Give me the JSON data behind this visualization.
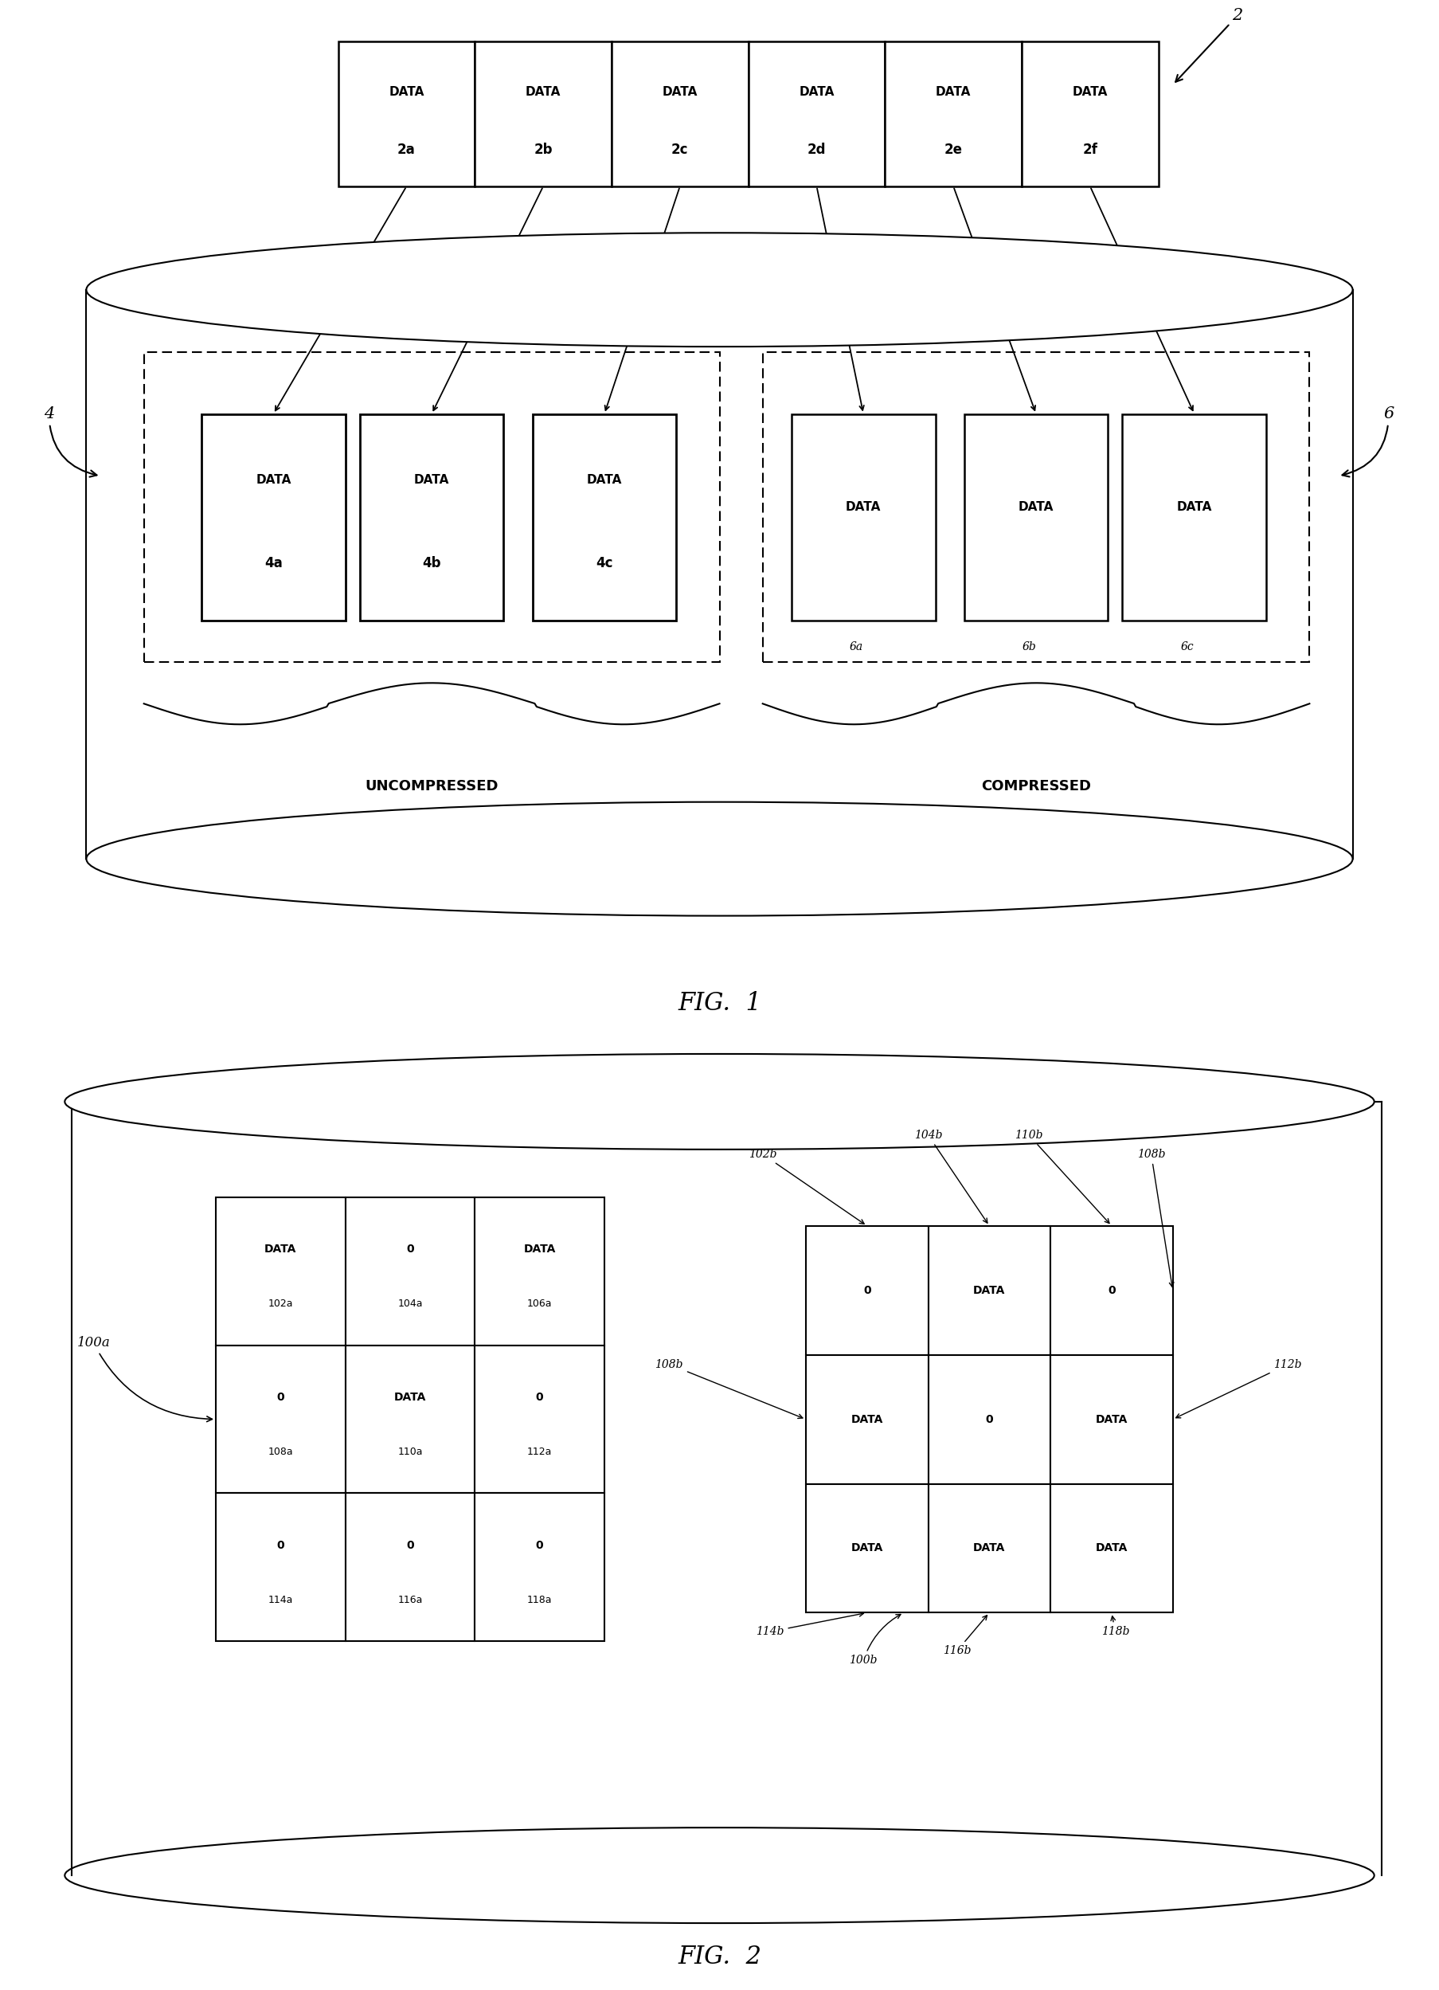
{
  "bg_color": "#ffffff",
  "fig1_title": "FIG.  1",
  "fig2_title": "FIG.  2",
  "top_box_labels": [
    "DATA\n2a",
    "DATA\n2b",
    "DATA\n2c",
    "DATA\n2d",
    "DATA\n2e",
    "DATA\n2f"
  ],
  "uncomp_labels": [
    "DATA\n4a",
    "DATA\n4b",
    "DATA\n4c"
  ],
  "comp_labels": [
    "DATA",
    "DATA",
    "DATA"
  ],
  "comp_sub": [
    "6a",
    "6b",
    "6c"
  ],
  "uncompressed_text": "UNCOMPRESSED",
  "compressed_text": "COMPRESSED",
  "fig2_cells_a": [
    [
      "DATA",
      "0",
      "DATA"
    ],
    [
      "0",
      "DATA",
      "0"
    ],
    [
      "0",
      "0",
      "0"
    ]
  ],
  "fig2_sub_a": [
    [
      "102a",
      "104a",
      "106a"
    ],
    [
      "108a",
      "110a",
      "112a"
    ],
    [
      "114a",
      "116a",
      "118a"
    ]
  ],
  "fig2_cells_b": [
    [
      "0",
      "DATA",
      "0"
    ],
    [
      "DATA",
      "0",
      "DATA"
    ],
    [
      "DATA",
      "DATA",
      "DATA"
    ]
  ],
  "fig2_sub_b_toplabels": [
    "102b",
    "104b",
    "110b",
    "108b"
  ],
  "fig2_sub_b_botlabels": [
    "114b",
    "100b",
    "116b",
    "118b"
  ],
  "fig2_label_108b": "108b",
  "fig2_label_112b": "112b",
  "label_100a": "100a",
  "label_4": "4",
  "label_6": "6",
  "label_2": "2"
}
